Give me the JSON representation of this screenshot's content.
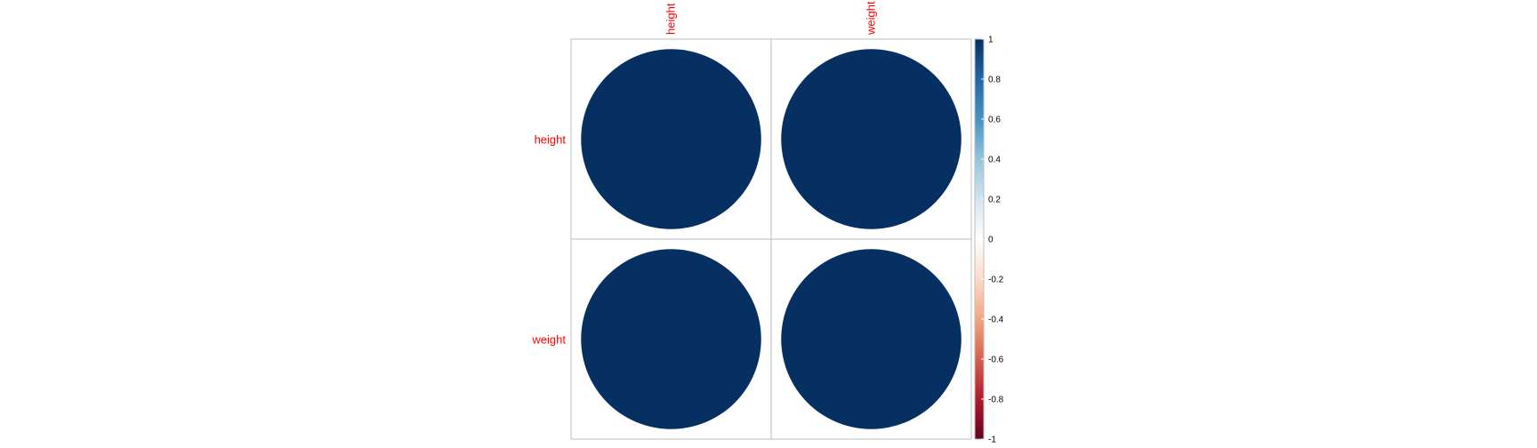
{
  "chart_data": {
    "type": "heatmap",
    "method": "circle",
    "variables": [
      "height",
      "weight"
    ],
    "matrix": [
      [
        1,
        1
      ],
      [
        1,
        1
      ]
    ],
    "colorbar": {
      "ticks": [
        "1",
        "0.8",
        "0.6",
        "0.4",
        "0.2",
        "0",
        "-0.2",
        "-0.4",
        "-0.6",
        "-0.8",
        "-1"
      ],
      "range": [
        -1,
        1
      ]
    },
    "colors": {
      "label": "#ff0000",
      "grid": "#bebebe",
      "scale": [
        "#67001f",
        "#b2182b",
        "#d6604d",
        "#f4a582",
        "#fddbc7",
        "#ffffff",
        "#d1e5f0",
        "#92c5de",
        "#4393c3",
        "#2166ac",
        "#053061"
      ]
    }
  }
}
